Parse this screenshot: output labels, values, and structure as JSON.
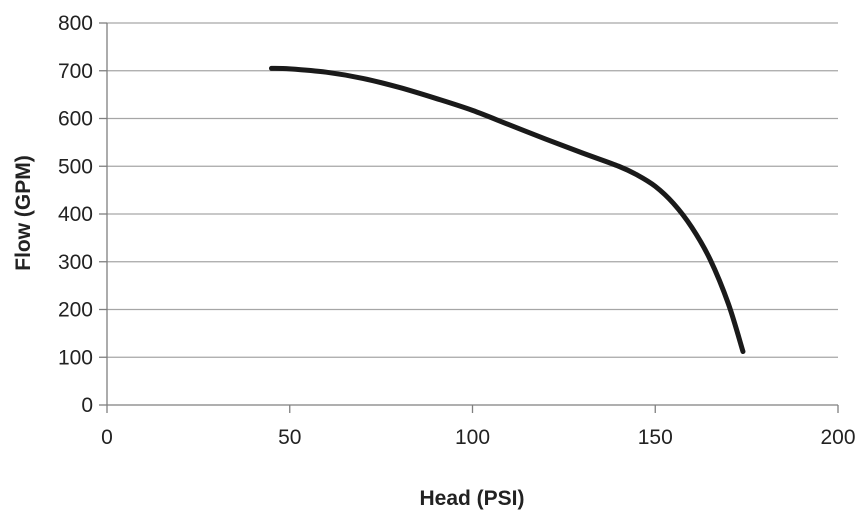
{
  "chart_data": {
    "type": "line",
    "title": "",
    "xlabel": "Head (PSI)",
    "ylabel": "Flow (GPM)",
    "xlim": [
      0,
      200
    ],
    "ylim": [
      0,
      800
    ],
    "xticks": [
      0,
      50,
      100,
      150,
      200
    ],
    "yticks": [
      0,
      100,
      200,
      300,
      400,
      500,
      600,
      700,
      800
    ],
    "grid": "horizontal",
    "legend": "none",
    "colors": {
      "line": "#1a1a1a",
      "grid": "#a6a6a6",
      "axis": "#7f7f7f",
      "text": "#222222"
    },
    "series": [
      {
        "x": [
          45,
          50,
          60,
          70,
          80,
          90,
          100,
          110,
          120,
          130,
          140,
          145,
          150,
          155,
          160,
          165,
          170,
          174
        ],
        "y": [
          705,
          704,
          697,
          684,
          665,
          642,
          617,
          587,
          557,
          528,
          500,
          482,
          458,
          422,
          372,
          305,
          212,
          112
        ]
      }
    ]
  }
}
